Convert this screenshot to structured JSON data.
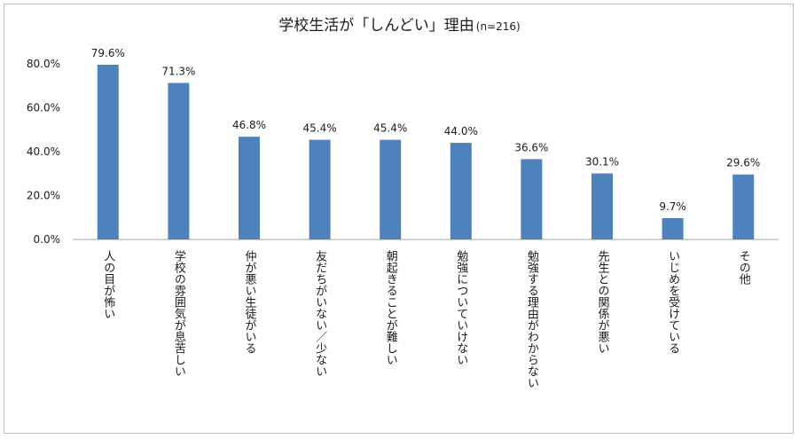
{
  "chart_data": {
    "type": "bar",
    "title": "学校生活が「しんどい」理由",
    "subtitle": "(n=216)",
    "categories": [
      "人の目が怖い",
      "学校の雰囲気が息苦しい",
      "仲が悪い生徒がいる",
      "友だちがいない／少ない",
      "朝起きることが難しい",
      "勉強についていけない",
      "勉強する理由がわからない",
      "先生との関係が悪い",
      "いじめを受けている",
      "その他"
    ],
    "values": [
      79.6,
      71.3,
      46.8,
      45.4,
      45.4,
      44.0,
      36.6,
      30.1,
      9.7,
      29.6
    ],
    "value_labels": [
      "79.6%",
      "71.3%",
      "46.8%",
      "45.4%",
      "45.4%",
      "44.0%",
      "36.6%",
      "30.1%",
      "9.7%",
      "29.6%"
    ],
    "yticks": [
      0,
      20,
      40,
      60,
      80
    ],
    "ytick_labels": [
      "0.0%",
      "20.0%",
      "40.0%",
      "60.0%",
      "80.0%"
    ],
    "ylim": [
      0,
      80
    ],
    "xlabel": "",
    "ylabel": "",
    "bar_color": "#4f81bd",
    "grid": false,
    "legend": "none"
  }
}
